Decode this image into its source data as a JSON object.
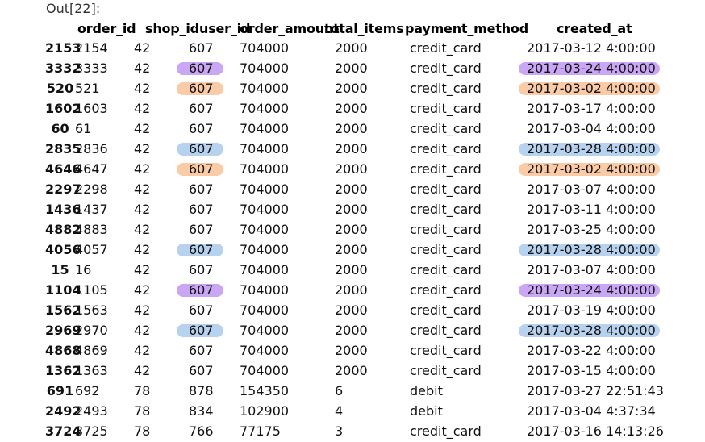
{
  "prompt": "Out[22]:",
  "highlight_colors": {
    "purple": "#b889f2",
    "orange": "#f8b98a",
    "blue": "#9dc3ea"
  },
  "columns": [
    "order_id",
    "shop_id",
    "user_id",
    "order_amount",
    "total_items",
    "payment_method",
    "created_at"
  ],
  "rows": [
    {
      "index": "2153",
      "order_id": "2154",
      "shop_id": "42",
      "user_id": "607",
      "order_amount": "704000",
      "total_items": "2000",
      "payment_method": "credit_card",
      "created_at": "2017-03-12 4:00:00",
      "user_mark": "",
      "date_mark": ""
    },
    {
      "index": "3332",
      "order_id": "3333",
      "shop_id": "42",
      "user_id": "607",
      "order_amount": "704000",
      "total_items": "2000",
      "payment_method": "credit_card",
      "created_at": "2017-03-24 4:00:00",
      "user_mark": "purple",
      "date_mark": "purple"
    },
    {
      "index": "520",
      "order_id": "521",
      "shop_id": "42",
      "user_id": "607",
      "order_amount": "704000",
      "total_items": "2000",
      "payment_method": "credit_card",
      "created_at": "2017-03-02 4:00:00",
      "user_mark": "orange",
      "date_mark": "orange"
    },
    {
      "index": "1602",
      "order_id": "1603",
      "shop_id": "42",
      "user_id": "607",
      "order_amount": "704000",
      "total_items": "2000",
      "payment_method": "credit_card",
      "created_at": "2017-03-17 4:00:00",
      "user_mark": "",
      "date_mark": ""
    },
    {
      "index": "60",
      "order_id": "61",
      "shop_id": "42",
      "user_id": "607",
      "order_amount": "704000",
      "total_items": "2000",
      "payment_method": "credit_card",
      "created_at": "2017-03-04 4:00:00",
      "user_mark": "",
      "date_mark": ""
    },
    {
      "index": "2835",
      "order_id": "2836",
      "shop_id": "42",
      "user_id": "607",
      "order_amount": "704000",
      "total_items": "2000",
      "payment_method": "credit_card",
      "created_at": "2017-03-28 4:00:00",
      "user_mark": "blue",
      "date_mark": "blue"
    },
    {
      "index": "4646",
      "order_id": "4647",
      "shop_id": "42",
      "user_id": "607",
      "order_amount": "704000",
      "total_items": "2000",
      "payment_method": "credit_card",
      "created_at": "2017-03-02 4:00:00",
      "user_mark": "orange",
      "date_mark": "orange"
    },
    {
      "index": "2297",
      "order_id": "2298",
      "shop_id": "42",
      "user_id": "607",
      "order_amount": "704000",
      "total_items": "2000",
      "payment_method": "credit_card",
      "created_at": "2017-03-07 4:00:00",
      "user_mark": "",
      "date_mark": ""
    },
    {
      "index": "1436",
      "order_id": "1437",
      "shop_id": "42",
      "user_id": "607",
      "order_amount": "704000",
      "total_items": "2000",
      "payment_method": "credit_card",
      "created_at": "2017-03-11 4:00:00",
      "user_mark": "",
      "date_mark": ""
    },
    {
      "index": "4882",
      "order_id": "4883",
      "shop_id": "42",
      "user_id": "607",
      "order_amount": "704000",
      "total_items": "2000",
      "payment_method": "credit_card",
      "created_at": "2017-03-25 4:00:00",
      "user_mark": "",
      "date_mark": ""
    },
    {
      "index": "4056",
      "order_id": "4057",
      "shop_id": "42",
      "user_id": "607",
      "order_amount": "704000",
      "total_items": "2000",
      "payment_method": "credit_card",
      "created_at": "2017-03-28 4:00:00",
      "user_mark": "blue",
      "date_mark": "blue"
    },
    {
      "index": "15",
      "order_id": "16",
      "shop_id": "42",
      "user_id": "607",
      "order_amount": "704000",
      "total_items": "2000",
      "payment_method": "credit_card",
      "created_at": "2017-03-07 4:00:00",
      "user_mark": "",
      "date_mark": ""
    },
    {
      "index": "1104",
      "order_id": "1105",
      "shop_id": "42",
      "user_id": "607",
      "order_amount": "704000",
      "total_items": "2000",
      "payment_method": "credit_card",
      "created_at": "2017-03-24 4:00:00",
      "user_mark": "purple",
      "date_mark": "purple"
    },
    {
      "index": "1562",
      "order_id": "1563",
      "shop_id": "42",
      "user_id": "607",
      "order_amount": "704000",
      "total_items": "2000",
      "payment_method": "credit_card",
      "created_at": "2017-03-19 4:00:00",
      "user_mark": "",
      "date_mark": ""
    },
    {
      "index": "2969",
      "order_id": "2970",
      "shop_id": "42",
      "user_id": "607",
      "order_amount": "704000",
      "total_items": "2000",
      "payment_method": "credit_card",
      "created_at": "2017-03-28 4:00:00",
      "user_mark": "blue",
      "date_mark": "blue"
    },
    {
      "index": "4868",
      "order_id": "4869",
      "shop_id": "42",
      "user_id": "607",
      "order_amount": "704000",
      "total_items": "2000",
      "payment_method": "credit_card",
      "created_at": "2017-03-22 4:00:00",
      "user_mark": "",
      "date_mark": ""
    },
    {
      "index": "1362",
      "order_id": "1363",
      "shop_id": "42",
      "user_id": "607",
      "order_amount": "704000",
      "total_items": "2000",
      "payment_method": "credit_card",
      "created_at": "2017-03-15 4:00:00",
      "user_mark": "",
      "date_mark": ""
    },
    {
      "index": "691",
      "order_id": "692",
      "shop_id": "78",
      "user_id": "878",
      "order_amount": "154350",
      "total_items": "6",
      "payment_method": "debit",
      "created_at": "2017-03-27 22:51:43",
      "user_mark": "",
      "date_mark": ""
    },
    {
      "index": "2492",
      "order_id": "2493",
      "shop_id": "78",
      "user_id": "834",
      "order_amount": "102900",
      "total_items": "4",
      "payment_method": "debit",
      "created_at": "2017-03-04 4:37:34",
      "user_mark": "",
      "date_mark": ""
    },
    {
      "index": "3724",
      "order_id": "3725",
      "shop_id": "78",
      "user_id": "766",
      "order_amount": "77175",
      "total_items": "3",
      "payment_method": "credit_card",
      "created_at": "2017-03-16 14:13:26",
      "user_mark": "",
      "date_mark": ""
    }
  ]
}
